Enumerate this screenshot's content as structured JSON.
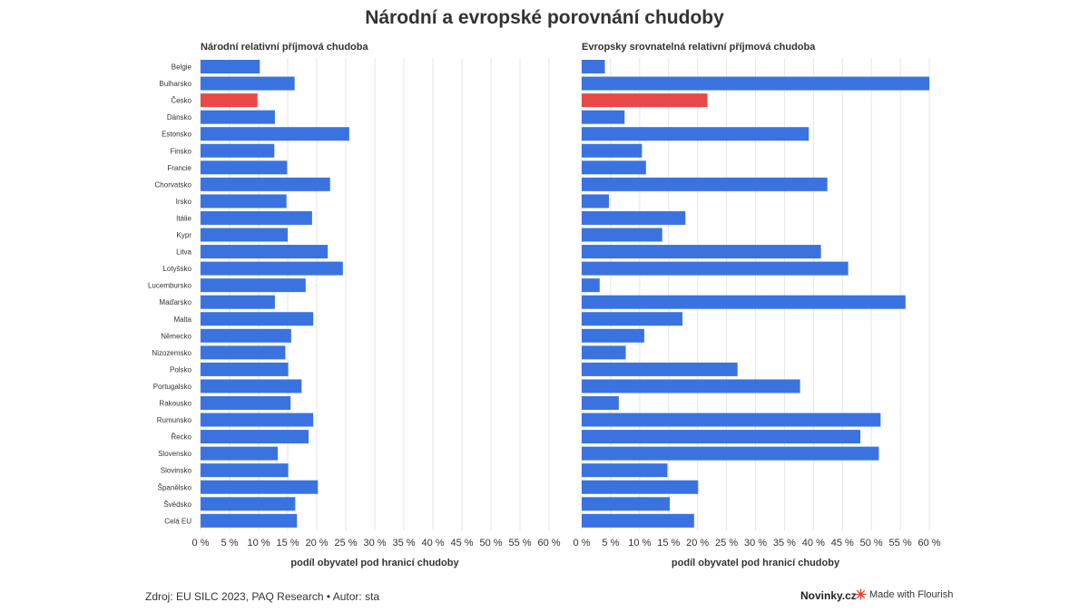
{
  "title": "Národní a evropské porovnání chudoby",
  "footer": {
    "source": "Zdroj: EU SILC 2023, PAQ Research • Autor: sta",
    "brand": "Novinky.cz",
    "made_with": "Made with Flourish"
  },
  "colors": {
    "bar": "#3a73e0",
    "highlight": "#e84848",
    "grid": "#e6e6e6"
  },
  "chart_data": [
    {
      "type": "bar",
      "orientation": "horizontal",
      "title": "Národní relativní příjmová chudoba",
      "xlabel": "podíl obyvatel pod hranicí chudoby",
      "xlim": [
        0,
        60
      ],
      "ticks": [
        "0 %",
        "5 %",
        "10 %",
        "15 %",
        "20 %",
        "25 %",
        "30 %",
        "35 %",
        "40 %",
        "45 %",
        "50 %",
        "55 %",
        "60 %"
      ],
      "highlight": "Česko",
      "categories": [
        "Belgie",
        "Bulharsko",
        "Česko",
        "Dánsko",
        "Estonsko",
        "Finsko",
        "Francie",
        "Chorvatsko",
        "Irsko",
        "Itálie",
        "Kypr",
        "Litva",
        "Lotyšsko",
        "Lucembursko",
        "Maďarsko",
        "Malta",
        "Německo",
        "Nizozemsko",
        "Polsko",
        "Portugalsko",
        "Rakousko",
        "Rumunsko",
        "Řecko",
        "Slovensko",
        "Slovinsko",
        "Španělsko",
        "Švédsko",
        "Celá EU"
      ],
      "values": [
        10.2,
        16.2,
        9.8,
        12.8,
        25.6,
        12.7,
        14.9,
        22.3,
        14.8,
        19.2,
        15.0,
        21.9,
        24.5,
        18.1,
        12.8,
        19.4,
        15.6,
        14.6,
        15.1,
        17.4,
        15.5,
        19.4,
        18.6,
        13.3,
        15.1,
        20.2,
        16.3,
        16.6
      ]
    },
    {
      "type": "bar",
      "orientation": "horizontal",
      "title": "Evropsky srovnatelná relativní příjmová chudoba",
      "xlabel": "podíl obyvatel pod hranicí chudoby",
      "xlim": [
        0,
        60
      ],
      "ticks": [
        "0 %",
        "5 %",
        "10 %",
        "15 %",
        "20 %",
        "25 %",
        "30 %",
        "35 %",
        "40 %",
        "45 %",
        "50 %",
        "55 %",
        "60 %"
      ],
      "highlight": "Česko",
      "categories": [
        "Belgie",
        "Bulharsko",
        "Česko",
        "Dánsko",
        "Estonsko",
        "Finsko",
        "Francie",
        "Chorvatsko",
        "Irsko",
        "Itálie",
        "Kypr",
        "Litva",
        "Lotyšsko",
        "Lucembursko",
        "Maďarsko",
        "Malta",
        "Německo",
        "Nizozemsko",
        "Polsko",
        "Portugalsko",
        "Rakousko",
        "Rumunsko",
        "Řecko",
        "Slovensko",
        "Slovinsko",
        "Španělsko",
        "Švédsko",
        "Celá EU"
      ],
      "values": [
        4.0,
        60.0,
        21.7,
        7.4,
        39.2,
        10.4,
        11.1,
        42.4,
        4.7,
        17.9,
        13.9,
        41.3,
        46.0,
        3.1,
        55.9,
        17.4,
        10.8,
        7.6,
        26.9,
        37.7,
        6.4,
        51.6,
        48.1,
        51.3,
        14.8,
        20.1,
        15.2,
        19.4
      ]
    }
  ]
}
